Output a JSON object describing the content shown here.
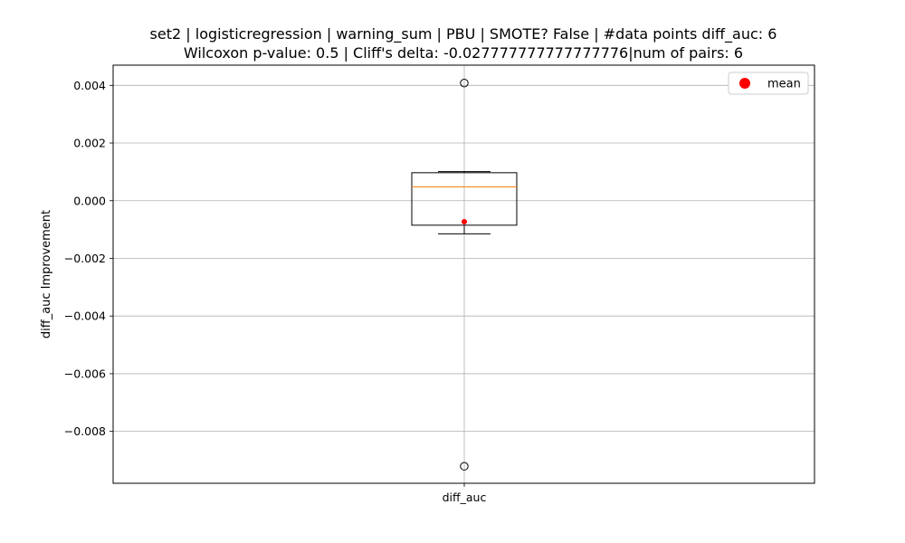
{
  "chart_data": {
    "type": "box",
    "title": "set2 | logisticregression | warning_sum | PBU | SMOTE? False | #data points diff_auc: 6",
    "subtitle": "Wilcoxon p-value: 0.5 | Cliff's delta: -0.027777777777777776|num of pairs: 6",
    "xlabel": "",
    "ylabel": "diff_auc Improvement",
    "categories": [
      "diff_auc"
    ],
    "ylim": [
      -0.0098,
      0.0047
    ],
    "yticks": [
      0.004,
      0.002,
      0.0,
      -0.002,
      -0.004,
      -0.006,
      -0.008
    ],
    "ytick_labels": [
      "0.004",
      "0.002",
      "0.000",
      "−0.002",
      "−0.004",
      "−0.006",
      "−0.008"
    ],
    "grid": true,
    "boxes": [
      {
        "category": "diff_auc",
        "q1": -0.00085,
        "median": 0.00048,
        "q3": 0.00097,
        "whisker_low": -0.00115,
        "whisker_high": 0.00101,
        "mean": -0.00073,
        "outliers": [
          0.00408,
          -0.00921
        ]
      }
    ],
    "legend": {
      "placement": "top-right",
      "entries": [
        {
          "label": "mean",
          "color": "#ff0000",
          "marker": "circle"
        }
      ]
    },
    "colors": {
      "box": "#000000",
      "median": "#ff7f0e",
      "mean": "#ff0000",
      "grid": "#b0b0b0"
    }
  }
}
